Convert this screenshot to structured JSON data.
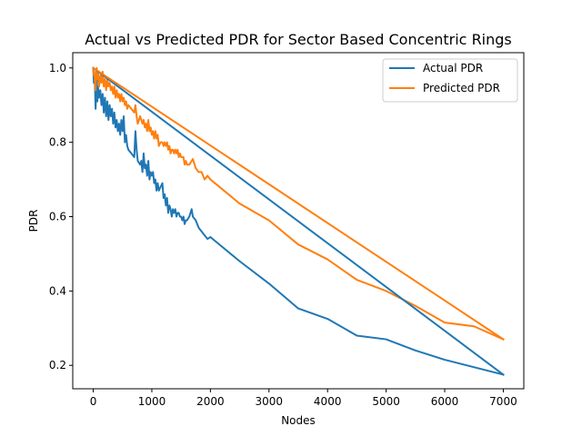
{
  "chart_data": {
    "type": "line",
    "title": "Actual vs Predicted PDR for Sector Based Concentric Rings",
    "xlabel": "Nodes",
    "ylabel": "PDR",
    "xlim": [
      -350,
      7350
    ],
    "ylim": [
      0.137,
      1.041
    ],
    "xticks": [
      0,
      1000,
      2000,
      3000,
      4000,
      5000,
      6000,
      7000
    ],
    "yticks": [
      0.2,
      0.4,
      0.6,
      0.8,
      1.0
    ],
    "xtick_labels": [
      "0",
      "1000",
      "2000",
      "3000",
      "4000",
      "5000",
      "6000",
      "7000"
    ],
    "ytick_labels": [
      "0.2",
      "0.4",
      "0.6",
      "0.8",
      "1.0"
    ],
    "grid": false,
    "legend_position": "top-right",
    "series": [
      {
        "name": "Actual PDR",
        "color": "#1f77b4",
        "points": [
          [
            0,
            1.0
          ],
          [
            10,
            0.96
          ],
          [
            20,
            0.98
          ],
          [
            30,
            0.95
          ],
          [
            40,
            0.89
          ],
          [
            50,
            0.93
          ],
          [
            60,
            0.97
          ],
          [
            70,
            0.91
          ],
          [
            80,
            0.95
          ],
          [
            100,
            0.92
          ],
          [
            120,
            0.94
          ],
          [
            140,
            0.9
          ],
          [
            160,
            0.93
          ],
          [
            180,
            0.88
          ],
          [
            200,
            0.92
          ],
          [
            220,
            0.87
          ],
          [
            240,
            0.91
          ],
          [
            260,
            0.86
          ],
          [
            280,
            0.9
          ],
          [
            300,
            0.87
          ],
          [
            320,
            0.89
          ],
          [
            340,
            0.85
          ],
          [
            360,
            0.88
          ],
          [
            380,
            0.84
          ],
          [
            400,
            0.86
          ],
          [
            420,
            0.83
          ],
          [
            440,
            0.85
          ],
          [
            460,
            0.82
          ],
          [
            480,
            0.86
          ],
          [
            500,
            0.83
          ],
          [
            520,
            0.87
          ],
          [
            540,
            0.8
          ],
          [
            560,
            0.82
          ],
          [
            580,
            0.79
          ],
          [
            600,
            0.78
          ],
          [
            650,
            0.77
          ],
          [
            700,
            0.76
          ],
          [
            720,
            0.83
          ],
          [
            740,
            0.78
          ],
          [
            760,
            0.75
          ],
          [
            800,
            0.74
          ],
          [
            820,
            0.75
          ],
          [
            840,
            0.72
          ],
          [
            860,
            0.77
          ],
          [
            880,
            0.73
          ],
          [
            900,
            0.74
          ],
          [
            920,
            0.71
          ],
          [
            940,
            0.75
          ],
          [
            960,
            0.7
          ],
          [
            980,
            0.72
          ],
          [
            1000,
            0.71
          ],
          [
            1020,
            0.72
          ],
          [
            1040,
            0.69
          ],
          [
            1060,
            0.7
          ],
          [
            1080,
            0.67
          ],
          [
            1100,
            0.69
          ],
          [
            1120,
            0.67
          ],
          [
            1150,
            0.68
          ],
          [
            1180,
            0.69
          ],
          [
            1200,
            0.65
          ],
          [
            1220,
            0.66
          ],
          [
            1240,
            0.63
          ],
          [
            1260,
            0.65
          ],
          [
            1280,
            0.61
          ],
          [
            1300,
            0.63
          ],
          [
            1320,
            0.62
          ],
          [
            1340,
            0.6
          ],
          [
            1360,
            0.62
          ],
          [
            1380,
            0.61
          ],
          [
            1400,
            0.62
          ],
          [
            1420,
            0.6
          ],
          [
            1440,
            0.61
          ],
          [
            1460,
            0.61
          ],
          [
            1480,
            0.6
          ],
          [
            1500,
            0.6
          ],
          [
            1520,
            0.59
          ],
          [
            1540,
            0.6
          ],
          [
            1560,
            0.58
          ],
          [
            1580,
            0.59
          ],
          [
            1600,
            0.59
          ],
          [
            1640,
            0.6
          ],
          [
            1680,
            0.62
          ],
          [
            1700,
            0.6
          ],
          [
            1750,
            0.59
          ],
          [
            1800,
            0.57
          ],
          [
            1850,
            0.56
          ],
          [
            1900,
            0.55
          ],
          [
            1950,
            0.54
          ],
          [
            2000,
            0.545
          ],
          [
            2500,
            0.48
          ],
          [
            3000,
            0.42
          ],
          [
            3500,
            0.353
          ],
          [
            4000,
            0.325
          ],
          [
            4500,
            0.28
          ],
          [
            5000,
            0.27
          ],
          [
            5500,
            0.24
          ],
          [
            6000,
            0.215
          ],
          [
            7000,
            0.175
          ]
        ]
      },
      {
        "name": "Predicted PDR",
        "color": "#ff7f0e",
        "points": [
          [
            0,
            1.0
          ],
          [
            10,
            0.98
          ],
          [
            20,
            0.99
          ],
          [
            30,
            0.96
          ],
          [
            40,
            0.94
          ],
          [
            50,
            0.98
          ],
          [
            60,
            1.0
          ],
          [
            70,
            0.97
          ],
          [
            80,
            0.99
          ],
          [
            100,
            0.95
          ],
          [
            120,
            0.98
          ],
          [
            140,
            0.96
          ],
          [
            160,
            0.99
          ],
          [
            180,
            0.95
          ],
          [
            200,
            0.97
          ],
          [
            220,
            0.94
          ],
          [
            240,
            0.97
          ],
          [
            260,
            0.95
          ],
          [
            280,
            0.96
          ],
          [
            300,
            0.94
          ],
          [
            320,
            0.95
          ],
          [
            340,
            0.93
          ],
          [
            360,
            0.95
          ],
          [
            380,
            0.92
          ],
          [
            400,
            0.94
          ],
          [
            420,
            0.92
          ],
          [
            440,
            0.93
          ],
          [
            460,
            0.91
          ],
          [
            480,
            0.93
          ],
          [
            500,
            0.91
          ],
          [
            520,
            0.92
          ],
          [
            540,
            0.9
          ],
          [
            560,
            0.91
          ],
          [
            580,
            0.89
          ],
          [
            600,
            0.9
          ],
          [
            650,
            0.89
          ],
          [
            700,
            0.88
          ],
          [
            720,
            0.9
          ],
          [
            740,
            0.87
          ],
          [
            760,
            0.85
          ],
          [
            800,
            0.87
          ],
          [
            820,
            0.86
          ],
          [
            840,
            0.85
          ],
          [
            860,
            0.86
          ],
          [
            880,
            0.84
          ],
          [
            900,
            0.85
          ],
          [
            920,
            0.83
          ],
          [
            940,
            0.86
          ],
          [
            960,
            0.83
          ],
          [
            980,
            0.84
          ],
          [
            1000,
            0.82
          ],
          [
            1020,
            0.83
          ],
          [
            1040,
            0.81
          ],
          [
            1060,
            0.83
          ],
          [
            1080,
            0.81
          ],
          [
            1100,
            0.82
          ],
          [
            1120,
            0.79
          ],
          [
            1150,
            0.8
          ],
          [
            1180,
            0.8
          ],
          [
            1200,
            0.79
          ],
          [
            1220,
            0.8
          ],
          [
            1240,
            0.79
          ],
          [
            1260,
            0.8
          ],
          [
            1280,
            0.78
          ],
          [
            1300,
            0.79
          ],
          [
            1320,
            0.77
          ],
          [
            1340,
            0.78
          ],
          [
            1360,
            0.78
          ],
          [
            1380,
            0.77
          ],
          [
            1400,
            0.78
          ],
          [
            1420,
            0.77
          ],
          [
            1440,
            0.78
          ],
          [
            1460,
            0.76
          ],
          [
            1480,
            0.77
          ],
          [
            1500,
            0.76
          ],
          [
            1520,
            0.76
          ],
          [
            1540,
            0.76
          ],
          [
            1560,
            0.74
          ],
          [
            1580,
            0.75
          ],
          [
            1600,
            0.74
          ],
          [
            1640,
            0.74
          ],
          [
            1680,
            0.75
          ],
          [
            1700,
            0.755
          ],
          [
            1750,
            0.73
          ],
          [
            1800,
            0.72
          ],
          [
            1850,
            0.72
          ],
          [
            1900,
            0.7
          ],
          [
            1950,
            0.71
          ],
          [
            2000,
            0.7
          ],
          [
            2500,
            0.635
          ],
          [
            3000,
            0.59
          ],
          [
            3500,
            0.525
          ],
          [
            4000,
            0.485
          ],
          [
            4500,
            0.43
          ],
          [
            5000,
            0.4
          ],
          [
            5500,
            0.36
          ],
          [
            6000,
            0.315
          ],
          [
            6500,
            0.305
          ],
          [
            7000,
            0.27
          ]
        ]
      },
      {
        "name": "",
        "color": "#1f77b4",
        "points": [
          [
            0,
            1.0
          ],
          [
            7000,
            0.175
          ]
        ]
      },
      {
        "name": "",
        "color": "#ff7f0e",
        "points": [
          [
            0,
            1.0
          ],
          [
            7000,
            0.27
          ]
        ]
      }
    ]
  }
}
